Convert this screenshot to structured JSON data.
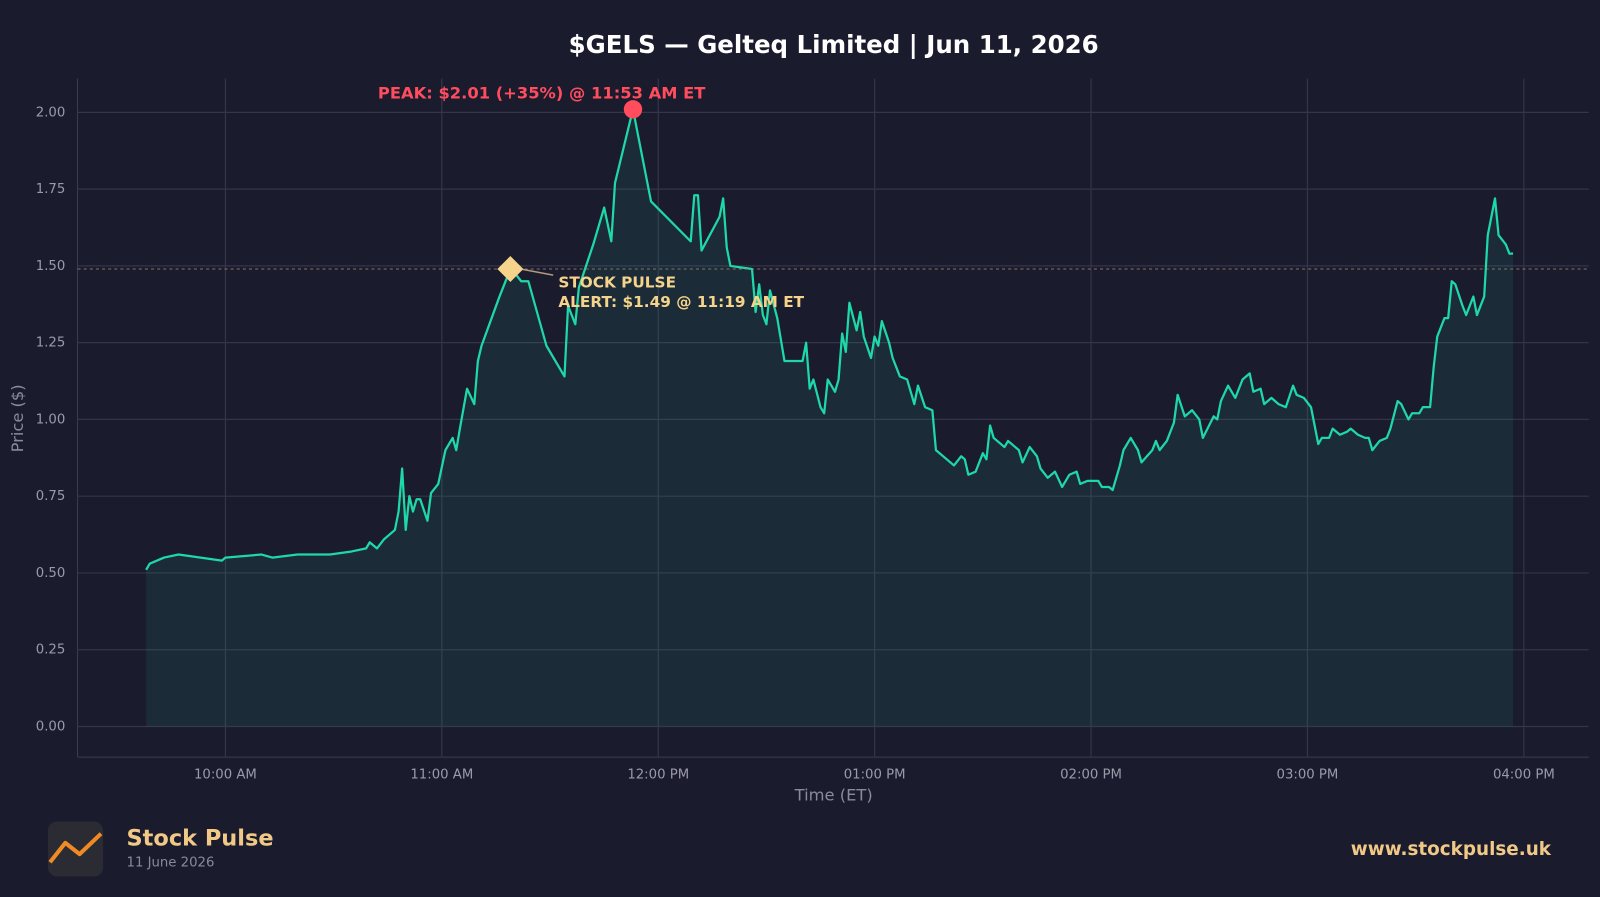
{
  "chart_data": {
    "type": "line",
    "title": "$GELS — Gelteq Limited  |  Jun 11, 2026",
    "x_label": "Time (ET)",
    "y_label": "Price ($)",
    "color": "#1fd8a8",
    "xlim": [
      "09:19 AM",
      "04:18 PM"
    ],
    "xticks": [
      "10:00 AM",
      "11:00 AM",
      "12:00 PM",
      "01:00 PM",
      "02:00 PM",
      "03:00 PM",
      "04:00 PM"
    ],
    "ylim": [
      -0.1,
      2.11
    ],
    "yticks": [
      {
        "value": 0,
        "label": "0.00"
      },
      {
        "value": 0.25,
        "label": "0.25"
      },
      {
        "value": 0.5,
        "label": "0.50"
      },
      {
        "value": 0.75,
        "label": "0.75"
      },
      {
        "value": 1,
        "label": "1.00"
      },
      {
        "value": 1.25,
        "label": "1.25"
      },
      {
        "value": 1.5,
        "label": "1.50"
      },
      {
        "value": 1.75,
        "label": "1.75"
      },
      {
        "value": 2,
        "label": "2.00"
      }
    ],
    "grid": true,
    "x": [
      "09:38 AM",
      "09:39 AM",
      "09:43 AM",
      "09:47 AM",
      "09:59 AM",
      "10:00 AM",
      "10:10 AM",
      "10:13 AM",
      "10:20 AM",
      "10:29 AM",
      "10:35 AM",
      "10:39 AM",
      "10:40 AM",
      "10:42 AM",
      "10:44 AM",
      "10:47 AM",
      "10:48 AM",
      "10:49 AM",
      "10:50 AM",
      "10:51 AM",
      "10:52 AM",
      "10:53 AM",
      "10:54 AM",
      "10:56 AM",
      "10:57 AM",
      "10:59 AM",
      "11:01 AM",
      "11:03 AM",
      "11:04 AM",
      "11:05 AM",
      "11:07 AM",
      "11:09 AM",
      "11:10 AM",
      "11:11 AM",
      "11:16 AM",
      "11:19 AM",
      "11:20 AM",
      "11:22 AM",
      "11:24 AM",
      "11:29 AM",
      "11:34 AM",
      "11:35 AM",
      "11:37 AM",
      "11:38 AM",
      "11:42 AM",
      "11:45 AM",
      "11:47 AM",
      "11:48 AM",
      "11:53 AM",
      "11:58 AM",
      "12:09 PM",
      "12:10 PM",
      "12:11 PM",
      "12:12 PM",
      "12:17 PM",
      "12:18 PM",
      "12:19 PM",
      "12:20 PM",
      "12:26 PM",
      "12:27 PM",
      "12:28 PM",
      "12:29 PM",
      "12:30 PM",
      "12:31 PM",
      "12:33 PM",
      "12:35 PM",
      "12:40 PM",
      "12:41 PM",
      "12:42 PM",
      "12:43 PM",
      "12:45 PM",
      "12:46 PM",
      "12:47 PM",
      "12:49 PM",
      "12:50 PM",
      "12:51 PM",
      "12:52 PM",
      "12:53 PM",
      "12:55 PM",
      "12:56 PM",
      "12:57 PM",
      "12:59 PM",
      "01:00 PM",
      "01:01 PM",
      "01:02 PM",
      "01:04 PM",
      "01:05 PM",
      "01:07 PM",
      "01:09 PM",
      "01:11 PM",
      "01:12 PM",
      "01:14 PM",
      "01:16 PM",
      "01:17 PM",
      "01:22 PM",
      "01:24 PM",
      "01:25 PM",
      "01:26 PM",
      "01:28 PM",
      "01:30 PM",
      "01:31 PM",
      "01:32 PM",
      "01:33 PM",
      "01:36 PM",
      "01:37 PM",
      "01:40 PM",
      "01:41 PM",
      "01:43 PM",
      "01:45 PM",
      "01:46 PM",
      "01:48 PM",
      "01:50 PM",
      "01:52 PM",
      "01:54 PM",
      "01:56 PM",
      "01:57 PM",
      "01:59 PM",
      "02:02 PM",
      "02:03 PM",
      "02:05 PM",
      "02:06 PM",
      "02:08 PM",
      "02:09 PM",
      "02:11 PM",
      "02:13 PM",
      "02:14 PM",
      "02:17 PM",
      "02:18 PM",
      "02:19 PM",
      "02:21 PM",
      "02:23 PM",
      "02:24 PM",
      "02:26 PM",
      "02:28 PM",
      "02:30 PM",
      "02:31 PM",
      "02:34 PM",
      "02:35 PM",
      "02:36 PM",
      "02:38 PM",
      "02:40 PM",
      "02:42 PM",
      "02:44 PM",
      "02:45 PM",
      "02:47 PM",
      "02:48 PM",
      "02:50 PM",
      "02:52 PM",
      "02:54 PM",
      "02:56 PM",
      "02:57 PM",
      "02:59 PM",
      "03:01 PM",
      "03:03 PM",
      "03:04 PM",
      "03:06 PM",
      "03:07 PM",
      "03:09 PM",
      "03:11 PM",
      "03:12 PM",
      "03:14 PM",
      "03:16 PM",
      "03:17 PM",
      "03:18 PM",
      "03:20 PM",
      "03:22 PM",
      "03:23 PM",
      "03:25 PM",
      "03:26 PM",
      "03:28 PM",
      "03:29 PM",
      "03:31 PM",
      "03:32 PM",
      "03:34 PM",
      "03:35 PM",
      "03:36 PM",
      "03:38 PM",
      "03:39 PM",
      "03:40 PM",
      "03:41 PM",
      "03:43 PM",
      "03:44 PM",
      "03:46 PM",
      "03:47 PM",
      "03:49 PM",
      "03:50 PM",
      "03:52 PM",
      "03:53 PM",
      "03:55 PM",
      "03:56 PM",
      "03:57 PM"
    ],
    "values": [
      0.51,
      0.53,
      0.55,
      0.56,
      0.54,
      0.55,
      0.56,
      0.55,
      0.56,
      0.56,
      0.57,
      0.58,
      0.6,
      0.58,
      0.61,
      0.64,
      0.7,
      0.84,
      0.64,
      0.75,
      0.7,
      0.74,
      0.74,
      0.67,
      0.76,
      0.79,
      0.9,
      0.94,
      0.9,
      0.97,
      1.1,
      1.05,
      1.19,
      1.24,
      1.4,
      1.49,
      1.48,
      1.45,
      1.45,
      1.24,
      1.14,
      1.37,
      1.31,
      1.43,
      1.57,
      1.69,
      1.58,
      1.77,
      2.01,
      1.71,
      1.58,
      1.73,
      1.73,
      1.55,
      1.66,
      1.72,
      1.56,
      1.5,
      1.49,
      1.35,
      1.44,
      1.34,
      1.31,
      1.42,
      1.33,
      1.19,
      1.19,
      1.25,
      1.1,
      1.13,
      1.04,
      1.02,
      1.13,
      1.09,
      1.13,
      1.28,
      1.22,
      1.38,
      1.29,
      1.35,
      1.27,
      1.2,
      1.27,
      1.24,
      1.32,
      1.25,
      1.2,
      1.14,
      1.13,
      1.05,
      1.11,
      1.04,
      1.03,
      0.9,
      0.85,
      0.88,
      0.87,
      0.82,
      0.83,
      0.89,
      0.87,
      0.98,
      0.94,
      0.91,
      0.93,
      0.9,
      0.86,
      0.91,
      0.88,
      0.84,
      0.81,
      0.83,
      0.78,
      0.82,
      0.83,
      0.79,
      0.8,
      0.8,
      0.78,
      0.78,
      0.77,
      0.85,
      0.9,
      0.94,
      0.9,
      0.86,
      0.9,
      0.93,
      0.9,
      0.93,
      0.99,
      1.08,
      1.01,
      1.03,
      1.0,
      0.94,
      1.01,
      1.0,
      1.06,
      1.11,
      1.07,
      1.13,
      1.15,
      1.09,
      1.1,
      1.05,
      1.07,
      1.05,
      1.04,
      1.11,
      1.08,
      1.07,
      1.04,
      0.92,
      0.94,
      0.94,
      0.97,
      0.95,
      0.96,
      0.97,
      0.95,
      0.94,
      0.94,
      0.9,
      0.93,
      0.94,
      0.97,
      1.06,
      1.05,
      1.0,
      1.02,
      1.02,
      1.04,
      1.04,
      1.17,
      1.27,
      1.33,
      1.33,
      1.45,
      1.44,
      1.37,
      1.34,
      1.4,
      1.34,
      1.4,
      1.6,
      1.72,
      1.6,
      1.57,
      1.54,
      1.54
    ],
    "annotations": [
      {
        "kind": "peak",
        "x": "11:53 AM",
        "y": 2.01,
        "color": "#ff4d5e",
        "lines": [
          "PEAK: $2.01 (+35%) @ 11:53 AM ET"
        ]
      },
      {
        "kind": "alert",
        "x": "11:19 AM",
        "y": 1.49,
        "color": "#f5d38a",
        "lines": [
          "STOCK PULSE",
          "ALERT: $1.49 @ 11:19 AM ET"
        ]
      }
    ]
  },
  "footer": {
    "brand": "Stock Pulse",
    "date": "11 June 2026",
    "url": "www.stockpulse.uk"
  }
}
